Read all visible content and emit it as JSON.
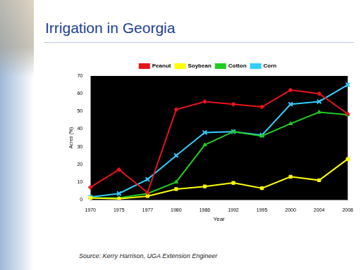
{
  "chart_data": {
    "type": "line",
    "title": "Irrigation in Georgia",
    "x_label": "Year",
    "y_label": "Acres (%)",
    "annotations": [
      "Source: Kerry Harrison, UGA Extension Engineer"
    ],
    "categories": [
      "1970",
      "1975",
      "1977",
      "1980",
      "1986",
      "1992",
      "1995",
      "2000",
      "2004",
      "2008"
    ],
    "series": [
      {
        "name": "Peanut",
        "color": "#e8141b",
        "marker": "diamond",
        "values": [
          7,
          17,
          4,
          51,
          55.5,
          54,
          52.5,
          62,
          60,
          48.5
        ]
      },
      {
        "name": "Soybean",
        "color": "#ffff00",
        "marker": "square",
        "values": [
          1,
          0.5,
          2,
          6,
          7.5,
          9.5,
          6.5,
          13,
          11,
          23
        ]
      },
      {
        "name": "Cotton",
        "color": "#22cc22",
        "marker": "triangle",
        "values": [
          1,
          1,
          3.5,
          10,
          31,
          38.5,
          36,
          43,
          49.5,
          48
        ]
      },
      {
        "name": "Corn",
        "color": "#33ccff",
        "marker": "x",
        "values": [
          1.5,
          3.5,
          11.5,
          25,
          38,
          38.5,
          36.5,
          54,
          55.5,
          65
        ]
      }
    ],
    "ylim": [
      0,
      70
    ],
    "yticks": [
      0,
      10,
      20,
      30,
      40,
      50,
      60,
      70
    ],
    "grid": false,
    "legend": "top"
  }
}
